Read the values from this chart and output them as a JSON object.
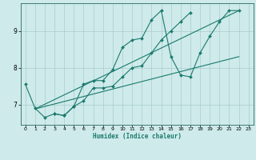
{
  "title": "",
  "xlabel": "Humidex (Indice chaleur)",
  "bg_color": "#ceeaea",
  "line_color": "#1a7a6e",
  "grid_color": "#aacccc",
  "xlim": [
    -0.5,
    23.5
  ],
  "ylim": [
    6.45,
    9.75
  ],
  "xticks": [
    0,
    1,
    2,
    3,
    4,
    5,
    6,
    7,
    8,
    9,
    10,
    11,
    12,
    13,
    14,
    15,
    16,
    17,
    18,
    19,
    20,
    21,
    22,
    23
  ],
  "yticks": [
    7,
    8,
    9
  ],
  "series": [
    {
      "x": [
        0,
        1,
        2,
        3,
        4,
        5,
        6,
        7,
        8,
        9,
        10,
        11,
        12,
        13,
        14,
        15,
        16,
        17,
        18,
        19,
        20,
        21,
        22
      ],
      "y": [
        7.55,
        6.9,
        6.65,
        6.75,
        6.7,
        6.95,
        7.55,
        7.65,
        7.65,
        7.95,
        8.55,
        8.75,
        8.8,
        9.3,
        9.55,
        8.3,
        7.8,
        7.75,
        8.4,
        8.85,
        9.25,
        9.55,
        9.55
      ],
      "marker": true
    },
    {
      "x": [
        3,
        4,
        5,
        6,
        7,
        8,
        9,
        10,
        11,
        12,
        13,
        14,
        15,
        16,
        17
      ],
      "y": [
        6.75,
        6.7,
        6.95,
        7.1,
        7.45,
        7.45,
        7.5,
        7.75,
        8.0,
        8.05,
        8.4,
        8.75,
        9.0,
        9.25,
        9.5
      ],
      "marker": true
    },
    {
      "x": [
        1,
        22
      ],
      "y": [
        6.88,
        9.55
      ],
      "marker": false
    },
    {
      "x": [
        1,
        22
      ],
      "y": [
        6.88,
        8.3
      ],
      "marker": false
    }
  ]
}
